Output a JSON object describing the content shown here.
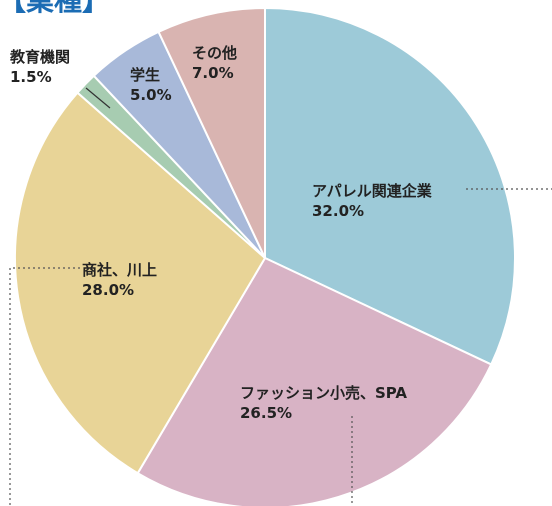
{
  "chart_data": {
    "type": "pie",
    "title": "【業種】",
    "categories": [
      "アパレル関連企業",
      "ファッション小売、SPA",
      "商社、川上",
      "教育機関",
      "学生",
      "その他"
    ],
    "values": [
      32.0,
      26.5,
      28.0,
      1.5,
      5.0,
      7.0
    ],
    "value_labels": [
      "32.0%",
      "26.5%",
      "28.0%",
      "1.5%",
      "5.0%",
      "7.0%"
    ],
    "colors": [
      "#9dcad8",
      "#d8b3c5",
      "#e8d497",
      "#a7ccb1",
      "#a8b9d9",
      "#d9b4b1"
    ]
  }
}
